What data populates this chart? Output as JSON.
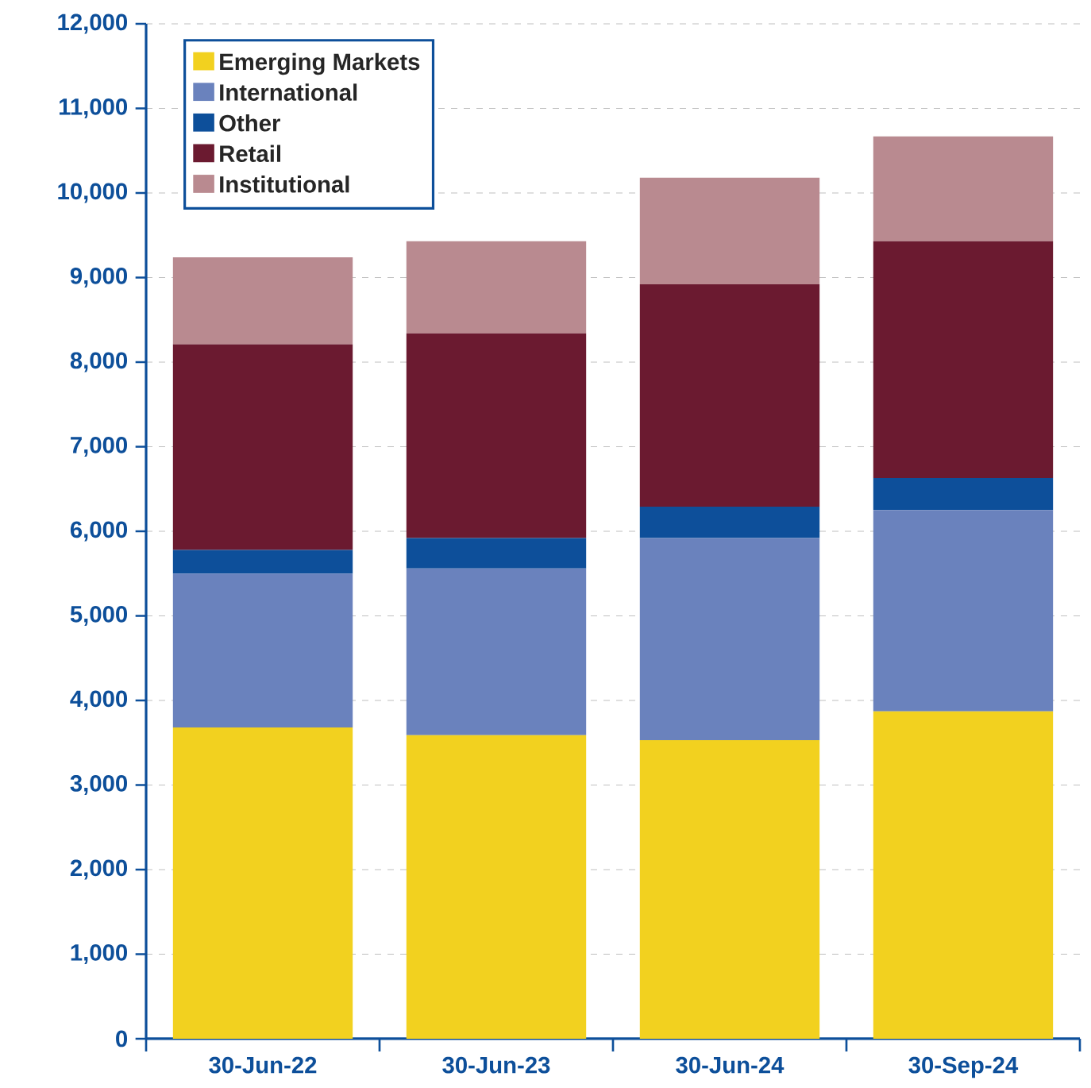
{
  "chart_data": {
    "type": "bar",
    "stacked": true,
    "categories": [
      "30-Jun-22",
      "30-Jun-23",
      "30-Jun-24",
      "30-Sep-24"
    ],
    "series": [
      {
        "name": "Emerging Markets",
        "color": "#f2d11f",
        "values": [
          3680,
          3590,
          3530,
          3870
        ]
      },
      {
        "name": "International",
        "color": "#6a82bd",
        "values": [
          1820,
          1970,
          2390,
          2380
        ]
      },
      {
        "name": "Other",
        "color": "#0d4f9a",
        "values": [
          280,
          360,
          370,
          380
        ]
      },
      {
        "name": "Retail",
        "color": "#6b1a30",
        "values": [
          2430,
          2420,
          2630,
          2800
        ]
      },
      {
        "name": "Institutional",
        "color": "#b98a90",
        "values": [
          1030,
          1090,
          1260,
          1240
        ]
      }
    ],
    "ylim": [
      0,
      12000
    ],
    "yticks": [
      {
        "value": 0,
        "label": "0"
      },
      {
        "value": 1000,
        "label": "1,000"
      },
      {
        "value": 2000,
        "label": "2,000"
      },
      {
        "value": 3000,
        "label": "3,000"
      },
      {
        "value": 4000,
        "label": "4,000"
      },
      {
        "value": 5000,
        "label": "5,000"
      },
      {
        "value": 6000,
        "label": "6,000"
      },
      {
        "value": 7000,
        "label": "7,000"
      },
      {
        "value": 8000,
        "label": "8,000"
      },
      {
        "value": 9000,
        "label": "9,000"
      },
      {
        "value": 10000,
        "label": "10,000"
      },
      {
        "value": 11000,
        "label": "11,000"
      },
      {
        "value": 12000,
        "label": "12,000"
      }
    ],
    "grid": "y",
    "legend": "top left"
  }
}
